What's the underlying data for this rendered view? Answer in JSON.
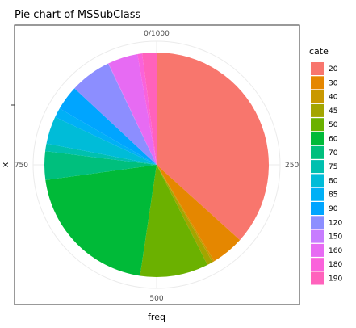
{
  "chart_data": {
    "type": "pie",
    "title": "Pie chart of MSSubClass",
    "xlabel": "freq",
    "ylabel": "x",
    "theta_ticks": [
      "0/1000",
      "250",
      "500",
      "750"
    ],
    "theta_tick_values": [
      0,
      250,
      500,
      750
    ],
    "theta_range": [
      0,
      1000
    ],
    "grid": true,
    "legend_placement": "right",
    "legend_title": "cate",
    "slices": [
      {
        "label": "20",
        "value": 536,
        "color": "#F8766D"
      },
      {
        "label": "30",
        "value": 69,
        "color": "#E58700"
      },
      {
        "label": "40",
        "value": 4,
        "color": "#C99800"
      },
      {
        "label": "45",
        "value": 12,
        "color": "#A3A500"
      },
      {
        "label": "50",
        "value": 144,
        "color": "#6BB100"
      },
      {
        "label": "60",
        "value": 299,
        "color": "#00BA38"
      },
      {
        "label": "70",
        "value": 60,
        "color": "#00BF7D"
      },
      {
        "label": "75",
        "value": 16,
        "color": "#00C0AF"
      },
      {
        "label": "80",
        "value": 58,
        "color": "#00BCD8"
      },
      {
        "label": "85",
        "value": 20,
        "color": "#00B0F6"
      },
      {
        "label": "90",
        "value": 52,
        "color": "#00A5FF"
      },
      {
        "label": "120",
        "value": 87,
        "color": "#8C8EFF"
      },
      {
        "label": "150",
        "value": 1,
        "color": "#C77CFF"
      },
      {
        "label": "160",
        "value": 63,
        "color": "#E76BF3"
      },
      {
        "label": "180",
        "value": 10,
        "color": "#FA62DB"
      },
      {
        "label": "190",
        "value": 30,
        "color": "#FF62BC"
      }
    ]
  }
}
